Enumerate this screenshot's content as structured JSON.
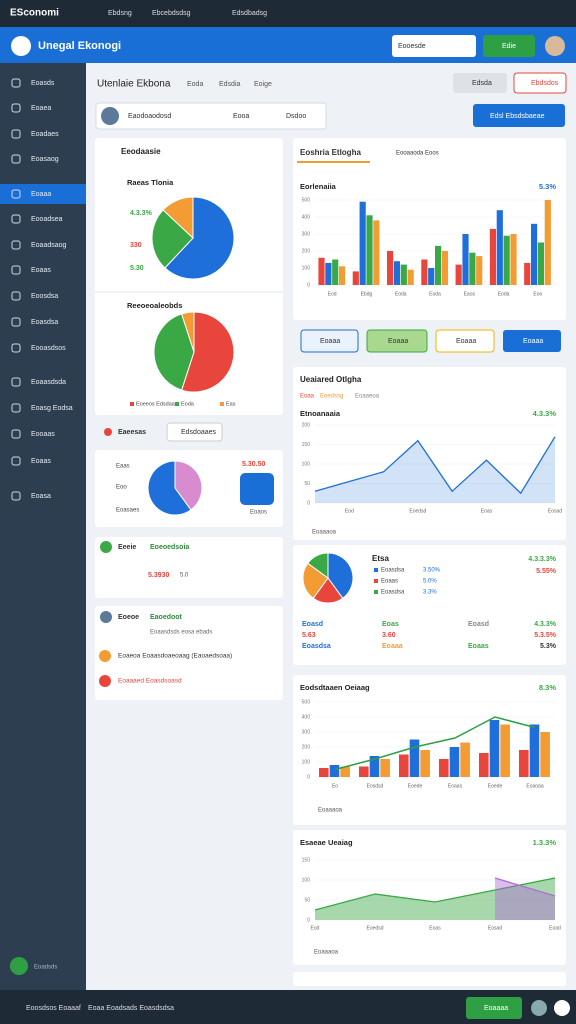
{
  "topbar": {
    "brand": "ESconomi",
    "menu": [
      "Ebdsng",
      "Ebcebdsdsg",
      "Edsdbadsg"
    ]
  },
  "header": {
    "title": "Unegal Ekonogi",
    "search": "Eooesde",
    "button": "Edie"
  },
  "sidebar": {
    "items": [
      "Eoasds",
      "Eoaea",
      "Eoadaes",
      "Eoasaog",
      "Eoaaa",
      "Eooadsea",
      "Eoaadsaog",
      "Eoaas",
      "Eoosdsa",
      "Eoasdsa",
      "Eooasdsos",
      "Eoaasdsda",
      "Eoasg Eodsa",
      "Eooaas",
      "Eoaas",
      "Eoasa"
    ],
    "active": 4,
    "footer": "Eoadsds"
  },
  "toolbar": {
    "title": "Utenlaie Ekbona",
    "tabs": [
      "Eoda",
      "Edsdia",
      "Eoige"
    ],
    "user": "Eaodoaodosd",
    "select": "Eooa",
    "select2": "Dsdoo",
    "buttons": [
      "Edsda",
      "Ebdsdos"
    ],
    "primary": "Edsl Ebsdsbaeae"
  },
  "left": {
    "title": "Eeodaasie",
    "stats": [
      "4.3.3%",
      "330",
      "5.30"
    ],
    "filter": "Eaeesas",
    "filter_button": "Edsdoaaes",
    "pie3_labels": [
      "Eaas",
      "Eoo",
      "Eoasaes"
    ],
    "pie3_value": "5.30.50",
    "pie3_link": "Eoaos",
    "section1": {
      "title": "Eeeie",
      "accent": "Eoeoedsoia",
      "value": "5.3930",
      "unit": "5.0"
    },
    "section2": {
      "title": "Eoeoe",
      "accent": "Eaoedoot",
      "sub": "Eoaasdsds eosa ebads"
    },
    "list": [
      "Eoaeoa Eoaasdoaeoaag (Eaoaedsoaa)",
      "Eoaaaed Eoasdsoasd"
    ]
  },
  "right": {
    "tabs": [
      "Eoshria Etlogha",
      "Eooaaoda Eoos"
    ],
    "buttons": [
      "Eoaaa",
      "Eoaaa",
      "Eoaaa",
      "Eoaaa"
    ],
    "panel2_title": "Ueaiared Otlgha",
    "panel2_tabs": [
      "Eoaa",
      "Eoedssg",
      "Eoaaeoa"
    ],
    "panel2_footer": "Eoaaaoa",
    "pie_panel": {
      "title": "Etsa",
      "legend": [
        "Eoasdsa",
        "Eoaas",
        "Eoasdsa"
      ],
      "legend_values": [
        "3.50%",
        "5.0%",
        "3.3%"
      ],
      "right_values": [
        "4.3.3.3%",
        "5.55%"
      ],
      "stats": [
        [
          "Eoasd",
          "Eoas",
          "Eoasd",
          "4.3.3%"
        ],
        [
          "5.63",
          "3.60",
          "",
          "5.3.5%"
        ],
        [
          "Eoasdsa",
          "Eoaaa",
          "Eoaas",
          "5.3%"
        ]
      ]
    },
    "panel4_footer": "Eoaaaoa",
    "panel5_footer": "Eoaaaoa"
  },
  "bottom": {
    "items": [
      "Eoosdsos Eoaaaf",
      "Eoaa Eoadsads Eoasdsdsa"
    ],
    "button": "Eoaaaa"
  },
  "chart_data": [
    {
      "type": "pie",
      "title": "Raeas Tlonia",
      "values": [
        62,
        25,
        13
      ],
      "colors": [
        "#1e6fd9",
        "#3aa845",
        "#f39c34"
      ]
    },
    {
      "type": "pie",
      "title": "Reeoeoaleobds",
      "categories": [
        "Eoeeos Edsdaa",
        "Eoda",
        "Eas"
      ],
      "values": [
        55,
        40,
        5
      ],
      "colors": [
        "#e8453c",
        "#3aa845",
        "#f39c34"
      ]
    },
    {
      "type": "pie",
      "values": [
        40,
        60
      ],
      "colors": [
        "#d98bd0",
        "#1e6fd9"
      ]
    },
    {
      "type": "bar",
      "title": "Eorlenaiia",
      "subtitle": "5.3%",
      "categories": [
        "Eod",
        "Ebdg",
        "Eoda",
        "Eoda",
        "Eaos",
        "Eoda",
        "Eoo"
      ],
      "series": [
        {
          "color": "#e8453c",
          "values": [
            160,
            80,
            200,
            150,
            120,
            330,
            130
          ]
        },
        {
          "color": "#1e6fd9",
          "values": [
            130,
            490,
            140,
            100,
            300,
            440,
            360
          ]
        },
        {
          "color": "#3aa845",
          "values": [
            150,
            410,
            120,
            230,
            190,
            290,
            250
          ]
        },
        {
          "color": "#f39c34",
          "values": [
            110,
            380,
            90,
            200,
            170,
            300,
            500
          ]
        }
      ],
      "ylim": [
        0,
        500
      ],
      "yticks": [
        0,
        100,
        200,
        300,
        400,
        500
      ]
    },
    {
      "type": "line",
      "title": "Etnoanaaia",
      "subtitle": "4.3.3%",
      "categories": [
        null,
        "Eod",
        null,
        "Eoedsd",
        null,
        "Eoas",
        null,
        "Eosad"
      ],
      "series": [
        {
          "color": "#1e6fd9",
          "values": [
            30,
            55,
            80,
            160,
            30,
            110,
            25,
            170
          ]
        }
      ],
      "ylim": [
        0,
        200
      ],
      "yticks": [
        0,
        50,
        100,
        150,
        200
      ]
    },
    {
      "type": "pie",
      "values": [
        40,
        20,
        25,
        15
      ],
      "colors": [
        "#1e6fd9",
        "#e8453c",
        "#f39c34",
        "#3aa845"
      ]
    },
    {
      "type": "bar",
      "title": "Eodsdtaaen Oeiaag",
      "subtitle": "8.3%",
      "categories": [
        "Eo",
        "Eosdsd",
        "Eoede",
        "Eoaas",
        "Eoede",
        "Eoaoaa"
      ],
      "series": [
        {
          "color": "#e8453c",
          "values": [
            60,
            70,
            150,
            120,
            160,
            180
          ]
        },
        {
          "color": "#1e6fd9",
          "values": [
            80,
            140,
            250,
            200,
            380,
            350
          ]
        },
        {
          "color": "#f39c34",
          "values": [
            70,
            120,
            180,
            230,
            350,
            300
          ]
        },
        {
          "type": "line",
          "color": "#2ea043",
          "values": [
            50,
            120,
            200,
            260,
            400,
            330
          ]
        }
      ],
      "ylim": [
        0,
        500
      ],
      "yticks": [
        0,
        100,
        200,
        300,
        400,
        500
      ]
    },
    {
      "type": "area",
      "title": "Esaeae Ueaiag",
      "subtitle": "1.3.3%",
      "categories": [
        "Eod",
        "Eoedsd",
        "Eoas",
        "Eosad",
        "Eoad"
      ],
      "series": [
        {
          "color": "#3aa845",
          "values": [
            25,
            65,
            45,
            75,
            105
          ]
        },
        {
          "color": "#b06cd6",
          "values": [
            null,
            null,
            null,
            105,
            60
          ]
        }
      ],
      "ylim": [
        0,
        150
      ],
      "yticks": [
        0,
        50,
        100,
        150
      ]
    }
  ]
}
